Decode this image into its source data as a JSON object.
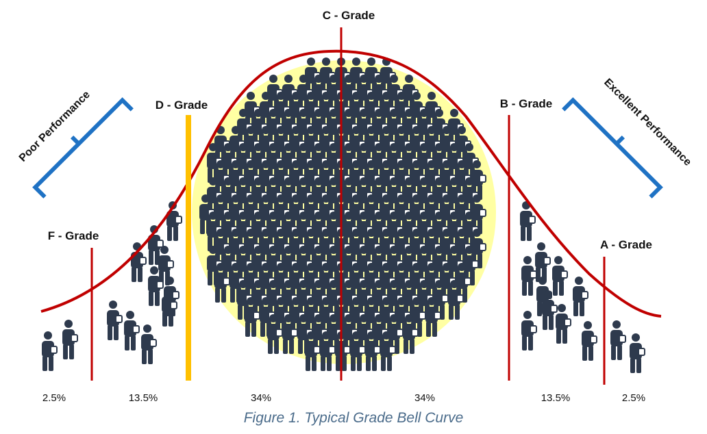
{
  "grade_labels": {
    "c": "C - Grade",
    "d": "D - Grade",
    "b": "B - Grade",
    "f": "F - Grade",
    "a": "A - Grade"
  },
  "performance_labels": {
    "poor": "Poor Performance",
    "excellent": "Excellent Performance"
  },
  "segments": [
    {
      "percent": "2.5%"
    },
    {
      "percent": "13.5%"
    },
    {
      "percent": "34%"
    },
    {
      "percent": "34%"
    },
    {
      "percent": "13.5%"
    },
    {
      "percent": "2.5%"
    }
  ],
  "caption": "Figure 1. Typical Grade Bell Curve",
  "colors": {
    "curve": "#c00000",
    "grade_line": "#c00000",
    "d_grade_line": "#ffc000",
    "highlight": "#ffff99",
    "bracket": "#1f72c4",
    "person": "#2e3a4d",
    "caption": "#4a6b8a"
  },
  "icons": {
    "person": "person-with-bag-icon"
  }
}
